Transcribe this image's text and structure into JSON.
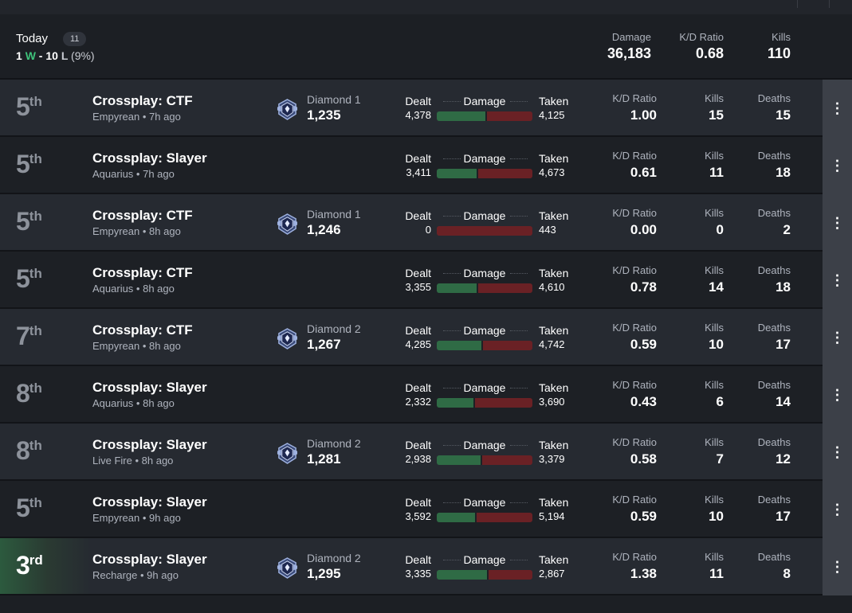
{
  "summary": {
    "title": "Today",
    "count": "11",
    "wins": "1",
    "w": "W",
    "dash": "-",
    "losses": "10",
    "l": "L",
    "pct": "(9%)",
    "stats": [
      {
        "label": "Damage",
        "value": "36,183"
      },
      {
        "label": "K/D Ratio",
        "value": "0.68"
      },
      {
        "label": "Kills",
        "value": "110"
      }
    ]
  },
  "labels": {
    "dealt": "Dealt",
    "damage": "Damage",
    "taken": "Taken",
    "kd": "K/D Ratio",
    "kills": "Kills",
    "deaths": "Deaths",
    "menu_icon": "more-vertical-icon",
    "rank_icon": "diamond-rank-icon"
  },
  "colors": {
    "win_green": "#3ec27a",
    "dealt_bar": "#2f6b45",
    "taken_bar": "#6a2125",
    "highlight_win": "#2c5a3e"
  },
  "matches": [
    {
      "place": "5",
      "suffix": "th",
      "mode": "Crossplay: CTF",
      "map": "Empyrean",
      "time": "7h ago",
      "rank": "Diamond 1",
      "rank_value": "1,235",
      "dealt": "4,378",
      "taken": "4,125",
      "dealt_num": 4378,
      "taken_num": 4125,
      "kd": "1.00",
      "kills": "15",
      "deaths": "15",
      "win": false
    },
    {
      "place": "5",
      "suffix": "th",
      "mode": "Crossplay: Slayer",
      "map": "Aquarius",
      "time": "7h ago",
      "rank": "",
      "rank_value": "",
      "dealt": "3,411",
      "taken": "4,673",
      "dealt_num": 3411,
      "taken_num": 4673,
      "kd": "0.61",
      "kills": "11",
      "deaths": "18",
      "win": false
    },
    {
      "place": "5",
      "suffix": "th",
      "mode": "Crossplay: CTF",
      "map": "Empyrean",
      "time": "8h ago",
      "rank": "Diamond 1",
      "rank_value": "1,246",
      "dealt": "0",
      "taken": "443",
      "dealt_num": 0,
      "taken_num": 443,
      "kd": "0.00",
      "kills": "0",
      "deaths": "2",
      "win": false
    },
    {
      "place": "5",
      "suffix": "th",
      "mode": "Crossplay: CTF",
      "map": "Aquarius",
      "time": "8h ago",
      "rank": "",
      "rank_value": "",
      "dealt": "3,355",
      "taken": "4,610",
      "dealt_num": 3355,
      "taken_num": 4610,
      "kd": "0.78",
      "kills": "14",
      "deaths": "18",
      "win": false
    },
    {
      "place": "7",
      "suffix": "th",
      "mode": "Crossplay: CTF",
      "map": "Empyrean",
      "time": "8h ago",
      "rank": "Diamond 2",
      "rank_value": "1,267",
      "dealt": "4,285",
      "taken": "4,742",
      "dealt_num": 4285,
      "taken_num": 4742,
      "kd": "0.59",
      "kills": "10",
      "deaths": "17",
      "win": false
    },
    {
      "place": "8",
      "suffix": "th",
      "mode": "Crossplay: Slayer",
      "map": "Aquarius",
      "time": "8h ago",
      "rank": "",
      "rank_value": "",
      "dealt": "2,332",
      "taken": "3,690",
      "dealt_num": 2332,
      "taken_num": 3690,
      "kd": "0.43",
      "kills": "6",
      "deaths": "14",
      "win": false
    },
    {
      "place": "8",
      "suffix": "th",
      "mode": "Crossplay: Slayer",
      "map": "Live Fire",
      "time": "8h ago",
      "rank": "Diamond 2",
      "rank_value": "1,281",
      "dealt": "2,938",
      "taken": "3,379",
      "dealt_num": 2938,
      "taken_num": 3379,
      "kd": "0.58",
      "kills": "7",
      "deaths": "12",
      "win": false
    },
    {
      "place": "5",
      "suffix": "th",
      "mode": "Crossplay: Slayer",
      "map": "Empyrean",
      "time": "9h ago",
      "rank": "",
      "rank_value": "",
      "dealt": "3,592",
      "taken": "5,194",
      "dealt_num": 3592,
      "taken_num": 5194,
      "kd": "0.59",
      "kills": "10",
      "deaths": "17",
      "win": false
    },
    {
      "place": "3",
      "suffix": "rd",
      "mode": "Crossplay: Slayer",
      "map": "Recharge",
      "time": "9h ago",
      "rank": "Diamond 2",
      "rank_value": "1,295",
      "dealt": "3,335",
      "taken": "2,867",
      "dealt_num": 3335,
      "taken_num": 2867,
      "kd": "1.38",
      "kills": "11",
      "deaths": "8",
      "win": true
    }
  ]
}
